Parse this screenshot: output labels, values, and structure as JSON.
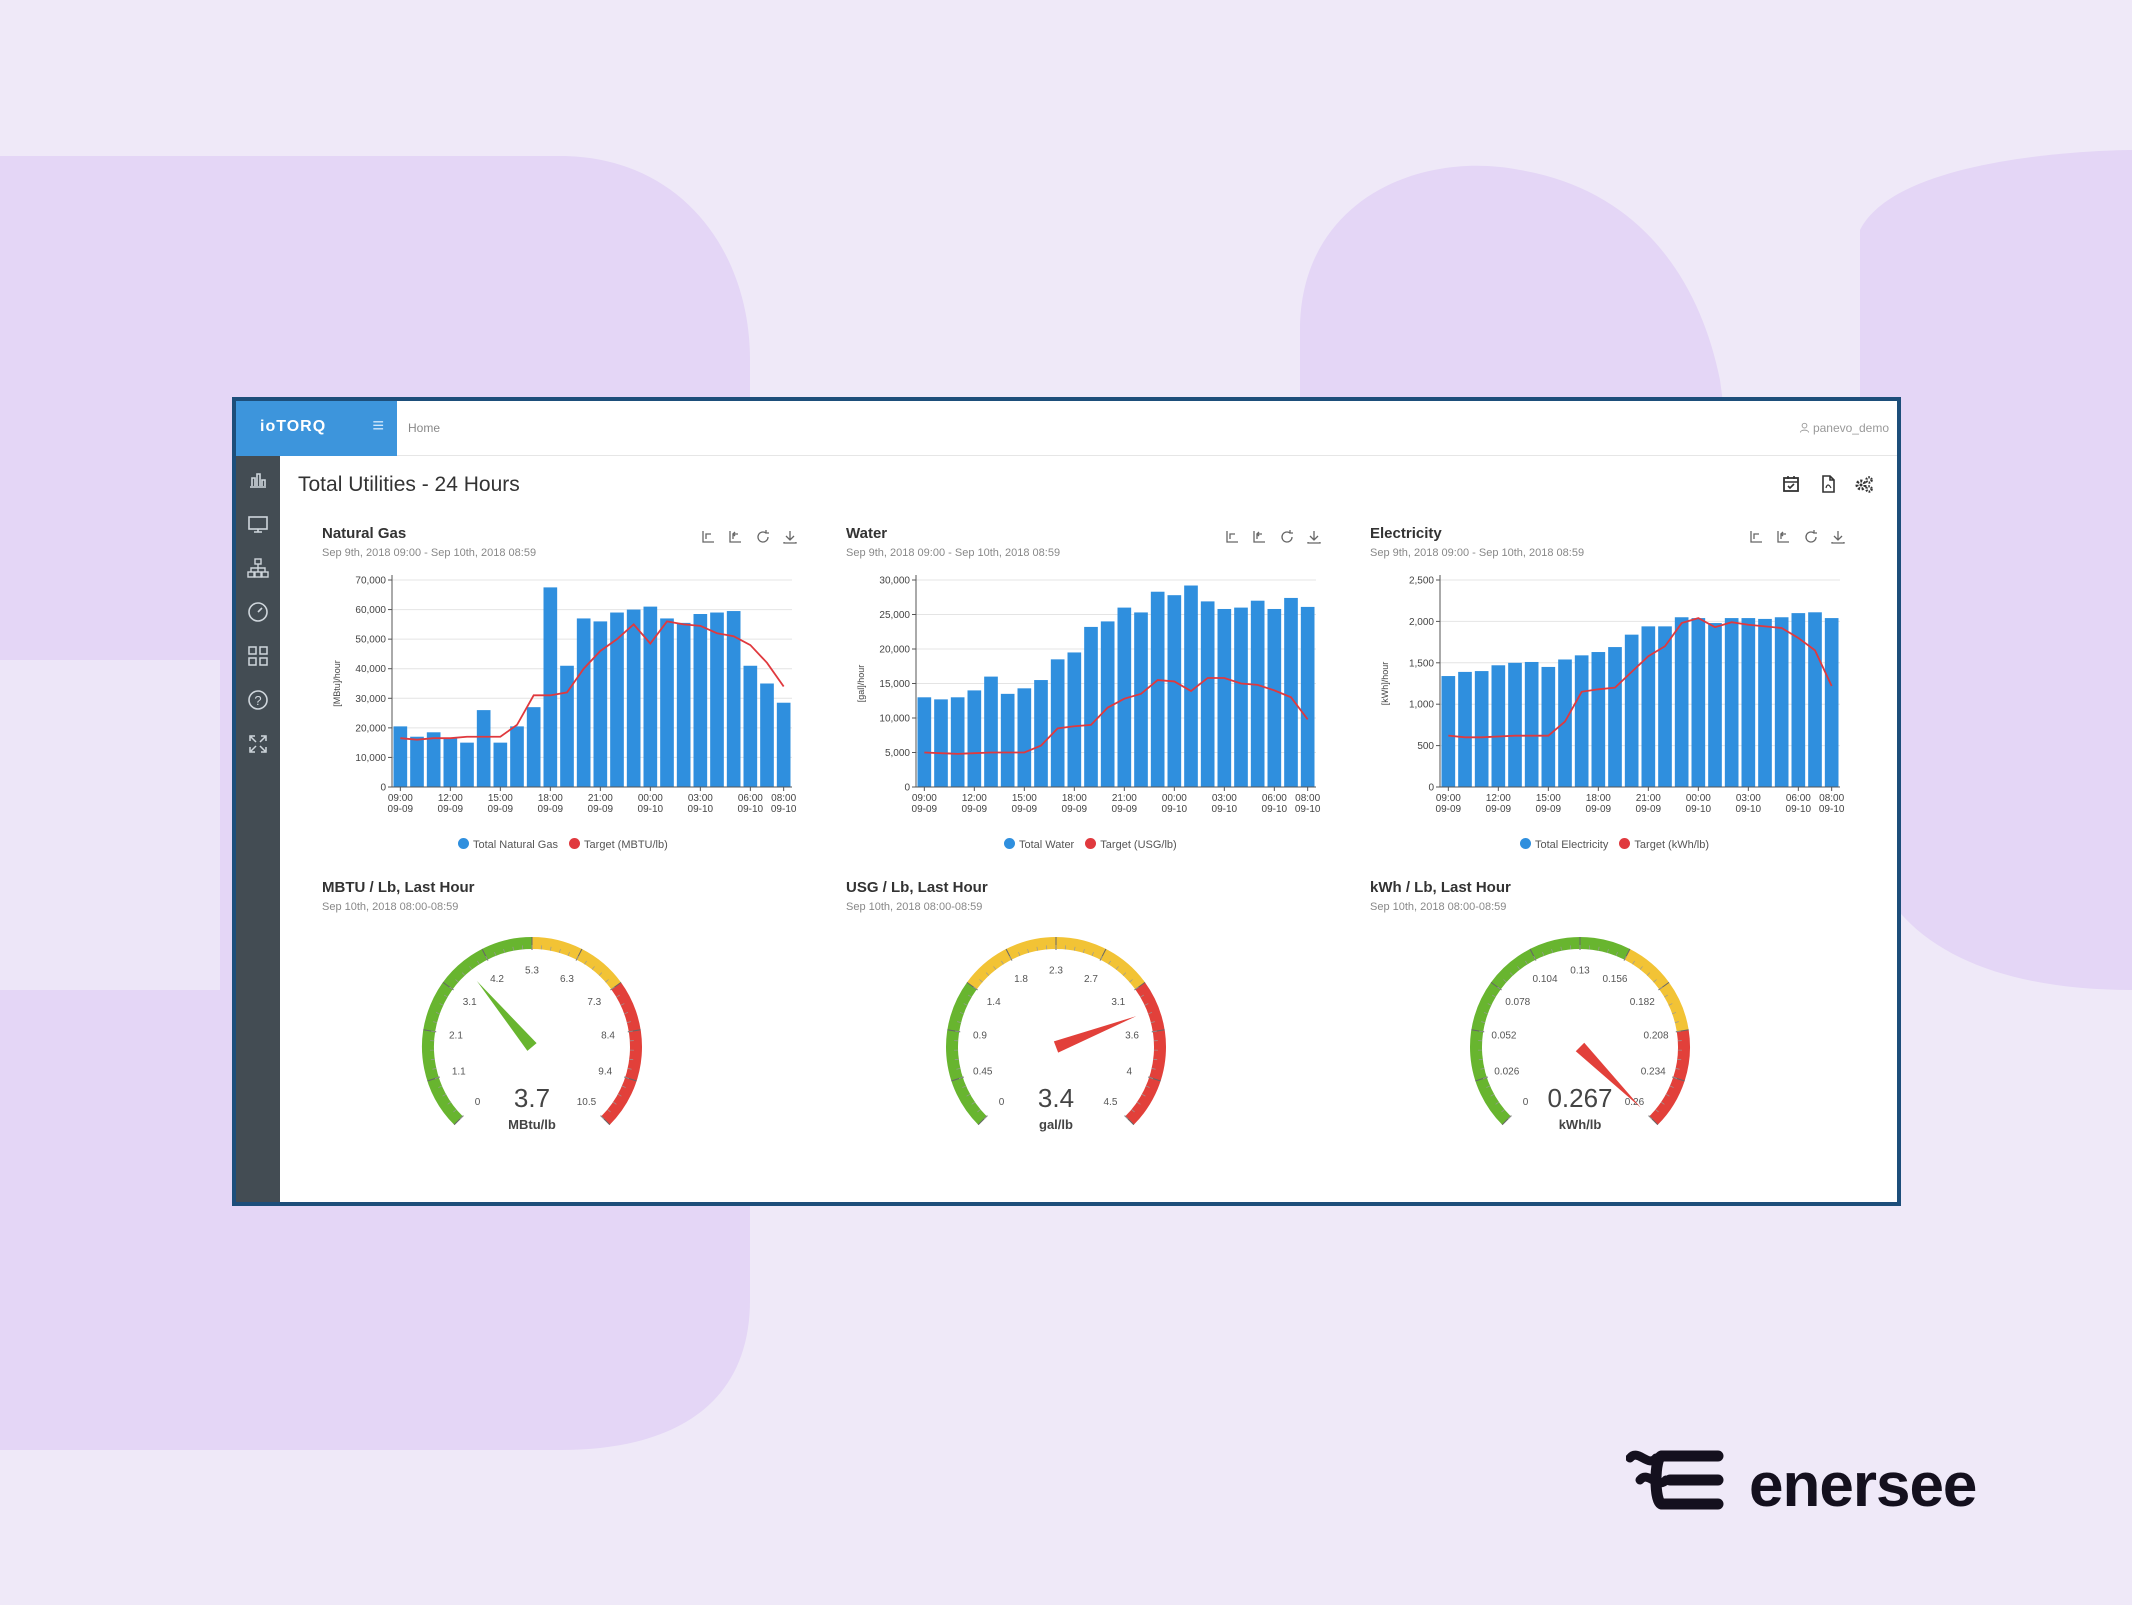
{
  "app": {
    "brand": "ioTORQ",
    "breadcrumb": "Home",
    "user": "panevo_demo",
    "page_title": "Total Utilities - 24 Hours"
  },
  "sidebar": {
    "items": [
      {
        "icon": "bar-chart-icon"
      },
      {
        "icon": "monitor-icon"
      },
      {
        "icon": "hierarchy-icon"
      },
      {
        "icon": "gauge-icon"
      },
      {
        "icon": "grid-icon"
      },
      {
        "icon": "help-icon"
      },
      {
        "icon": "fullscreen-icon"
      }
    ]
  },
  "colors": {
    "bar": "#2f8fde",
    "target": "#e0393e",
    "gauge_green": "#68b52f",
    "gauge_yellow": "#f2c335",
    "gauge_red": "#e2403a",
    "brand_blue": "#3d95dc",
    "sidebar": "#434c53"
  },
  "chart_data": [
    {
      "type": "bar",
      "title": "Natural Gas",
      "subtitle": "Sep 9th, 2018 09:00 - Sep 10th, 2018 08:59",
      "ylabel": "[MBtu]/hour",
      "ylim": [
        0,
        70000
      ],
      "yticks": [
        "0",
        "10,000",
        "20,000",
        "30,000",
        "40,000",
        "50,000",
        "60,000",
        "70,000"
      ],
      "xticks": [
        {
          "time": "09:00",
          "date": "09-09"
        },
        {
          "time": "12:00",
          "date": "09-09"
        },
        {
          "time": "15:00",
          "date": "09-09"
        },
        {
          "time": "18:00",
          "date": "09-09"
        },
        {
          "time": "21:00",
          "date": "09-09"
        },
        {
          "time": "00:00",
          "date": "09-10"
        },
        {
          "time": "03:00",
          "date": "09-10"
        },
        {
          "time": "06:00",
          "date": "09-10"
        },
        {
          "time": "08:00",
          "date": "09-10"
        }
      ],
      "series": [
        {
          "name": "Total Natural Gas",
          "kind": "bar",
          "values": [
            20500,
            17000,
            18500,
            16500,
            15000,
            26000,
            15000,
            20500,
            27000,
            67500,
            41000,
            57000,
            56000,
            59000,
            60000,
            61000,
            57000,
            55500,
            58500,
            59000,
            59500,
            41000,
            35000,
            28500
          ]
        },
        {
          "name": "Target (MBTU/lb)",
          "kind": "line",
          "values": [
            16500,
            16000,
            16500,
            16500,
            17000,
            17000,
            17000,
            21000,
            31000,
            31000,
            32000,
            40000,
            46000,
            50000,
            55000,
            48500,
            56000,
            55000,
            54500,
            52000,
            51000,
            48000,
            42000,
            34000
          ]
        }
      ]
    },
    {
      "type": "bar",
      "title": "Water",
      "subtitle": "Sep 9th, 2018 09:00 - Sep 10th, 2018 08:59",
      "ylabel": "[gal]/hour",
      "ylim": [
        0,
        30000
      ],
      "yticks": [
        "0",
        "5,000",
        "10,000",
        "15,000",
        "20,000",
        "25,000",
        "30,000"
      ],
      "xticks": [
        {
          "time": "09:00",
          "date": "09-09"
        },
        {
          "time": "12:00",
          "date": "09-09"
        },
        {
          "time": "15:00",
          "date": "09-09"
        },
        {
          "time": "18:00",
          "date": "09-09"
        },
        {
          "time": "21:00",
          "date": "09-09"
        },
        {
          "time": "00:00",
          "date": "09-10"
        },
        {
          "time": "03:00",
          "date": "09-10"
        },
        {
          "time": "06:00",
          "date": "09-10"
        },
        {
          "time": "08:00",
          "date": "09-10"
        }
      ],
      "series": [
        {
          "name": "Total Water",
          "kind": "bar",
          "values": [
            13000,
            12700,
            13000,
            14000,
            16000,
            13500,
            14300,
            15500,
            18500,
            19500,
            23200,
            24000,
            26000,
            25300,
            28300,
            27800,
            29200,
            26900,
            25800,
            26000,
            27000,
            25800,
            27400,
            26100
          ]
        },
        {
          "name": "Target (USG/lb)",
          "kind": "line",
          "values": [
            5000,
            4900,
            4800,
            4900,
            5000,
            5000,
            5000,
            6000,
            8500,
            8800,
            9000,
            11500,
            12800,
            13500,
            15500,
            15300,
            13900,
            15800,
            15800,
            15000,
            14800,
            14000,
            13000,
            9800
          ]
        }
      ]
    },
    {
      "type": "bar",
      "title": "Electricity",
      "subtitle": "Sep 9th, 2018 09:00 - Sep 10th, 2018 08:59",
      "ylabel": "[kWh]/hour",
      "ylim": [
        0,
        2500
      ],
      "yticks": [
        "0",
        "500",
        "1,000",
        "1,500",
        "2,000",
        "2,500"
      ],
      "xticks": [
        {
          "time": "09:00",
          "date": "09-09"
        },
        {
          "time": "12:00",
          "date": "09-09"
        },
        {
          "time": "15:00",
          "date": "09-09"
        },
        {
          "time": "18:00",
          "date": "09-09"
        },
        {
          "time": "21:00",
          "date": "09-09"
        },
        {
          "time": "00:00",
          "date": "09-10"
        },
        {
          "time": "03:00",
          "date": "09-10"
        },
        {
          "time": "06:00",
          "date": "09-10"
        },
        {
          "time": "08:00",
          "date": "09-10"
        }
      ],
      "series": [
        {
          "name": "Total Electricity",
          "kind": "bar",
          "values": [
            1340,
            1390,
            1400,
            1470,
            1500,
            1510,
            1450,
            1540,
            1590,
            1630,
            1690,
            1840,
            1940,
            1940,
            2050,
            2040,
            1980,
            2040,
            2040,
            2030,
            2050,
            2100,
            2110,
            2040
          ]
        },
        {
          "name": "Target (kWh/lb)",
          "kind": "line",
          "values": [
            620,
            600,
            600,
            610,
            620,
            620,
            620,
            790,
            1150,
            1180,
            1200,
            1390,
            1580,
            1700,
            1980,
            2040,
            1930,
            1990,
            1960,
            1940,
            1920,
            1800,
            1650,
            1220
          ]
        }
      ]
    }
  ],
  "gauges": [
    {
      "title": "MBTU / Lb, Last Hour",
      "subtitle": "Sep 10th, 2018 08:00-08:59",
      "value": 3.7,
      "value_label": "3.7",
      "unit": "MBtu/lb",
      "min": 0,
      "max": 10.5,
      "ticks": [
        "0",
        "1.1",
        "2.1",
        "3.1",
        "4.2",
        "5.3",
        "6.3",
        "7.3",
        "8.4",
        "9.4",
        "10.5"
      ],
      "bands": [
        {
          "from": 0,
          "to": 5.25,
          "color": "green"
        },
        {
          "from": 5.25,
          "to": 7.35,
          "color": "yellow"
        },
        {
          "from": 7.35,
          "to": 10.5,
          "color": "red"
        }
      ],
      "needle_color": "green"
    },
    {
      "title": "USG / Lb, Last Hour",
      "subtitle": "Sep 10th, 2018 08:00-08:59",
      "value": 3.4,
      "value_label": "3.4",
      "unit": "gal/lb",
      "min": 0,
      "max": 4.5,
      "ticks": [
        "0",
        "0.45",
        "0.9",
        "1.4",
        "1.8",
        "2.3",
        "2.7",
        "3.1",
        "3.6",
        "4",
        "4.5"
      ],
      "bands": [
        {
          "from": 0,
          "to": 1.35,
          "color": "green"
        },
        {
          "from": 1.35,
          "to": 3.15,
          "color": "yellow"
        },
        {
          "from": 3.15,
          "to": 4.5,
          "color": "red"
        }
      ],
      "needle_color": "red"
    },
    {
      "title": "kWh / Lb, Last Hour",
      "subtitle": "Sep 10th, 2018 08:00-08:59",
      "value": 0.267,
      "value_label": "0.267",
      "unit": "kWh/lb",
      "min": 0,
      "max": 0.26,
      "ticks": [
        "0",
        "0.026",
        "0.052",
        "0.078",
        "0.104",
        "0.13",
        "0.156",
        "0.182",
        "0.208",
        "0.234",
        "0.26"
      ],
      "bands": [
        {
          "from": 0,
          "to": 0.156,
          "color": "green"
        },
        {
          "from": 0.156,
          "to": 0.208,
          "color": "yellow"
        },
        {
          "from": 0.208,
          "to": 0.26,
          "color": "red"
        }
      ],
      "needle_color": "red"
    }
  ],
  "logo": {
    "text": "enersee"
  }
}
